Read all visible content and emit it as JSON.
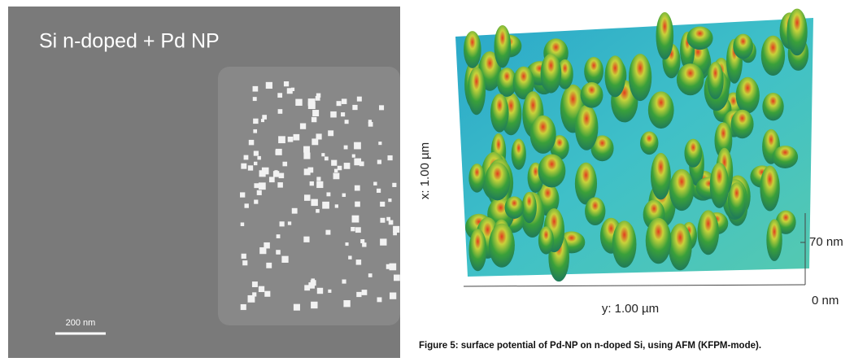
{
  "sem_image": {
    "label": "Si n-doped + Pd NP",
    "scale_bar": "200 nm"
  },
  "afm_image": {
    "x_axis": "x: 1.00 µm",
    "y_axis": "y: 1.00 µm",
    "z_top": "70 nm",
    "z_bottom": "0 nm"
  },
  "caption": "Figure 5: surface potential of Pd-NP on n-doped Si, using AFM (KFPM-mode)."
}
